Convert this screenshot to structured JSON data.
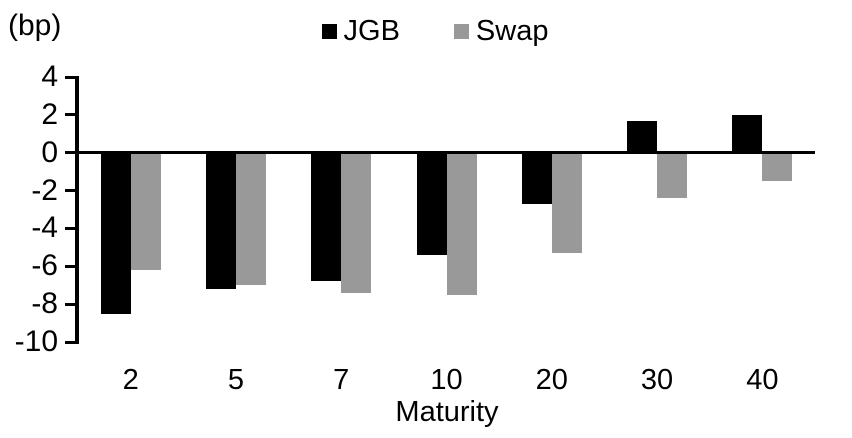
{
  "chart_data": {
    "type": "bar",
    "unit_label": "(bp)",
    "xlabel": "Maturity",
    "categories": [
      "2",
      "5",
      "7",
      "10",
      "20",
      "30",
      "40"
    ],
    "series": [
      {
        "name": "JGB",
        "color": "#000000",
        "values": [
          -8.5,
          -7.2,
          -6.8,
          -5.4,
          -2.7,
          1.7,
          2.0
        ]
      },
      {
        "name": "Swap",
        "color": "#999999",
        "values": [
          -6.2,
          -7.0,
          -7.4,
          -7.5,
          -5.3,
          -2.4,
          -1.5
        ]
      }
    ],
    "ylim": [
      -10,
      4
    ],
    "yticks": [
      4,
      2,
      0,
      -2,
      -4,
      -6,
      -8,
      -10
    ],
    "legend_position": "top-center",
    "axis_color": "#000000",
    "grid": false
  }
}
